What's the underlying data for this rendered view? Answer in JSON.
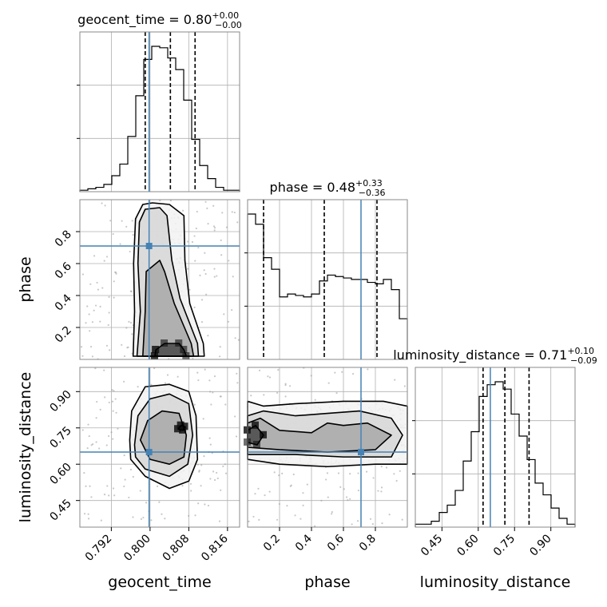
{
  "chart_data": {
    "type": "corner",
    "parameters": [
      {
        "name": "geocent_time",
        "range": [
          0.7855,
          0.8185
        ],
        "ticks": [
          {
            "v": 0.792,
            "label": "0.792"
          },
          {
            "v": 0.8,
            "label": "0.800"
          },
          {
            "v": 0.808,
            "label": "0.808"
          },
          {
            "v": 0.816,
            "label": "0.816"
          }
        ],
        "injection": 0.7998
      },
      {
        "name": "phase",
        "range": [
          0.0,
          1.0
        ],
        "ticks": [
          {
            "v": 0.2,
            "label": "0.2"
          },
          {
            "v": 0.4,
            "label": "0.4"
          },
          {
            "v": 0.6,
            "label": "0.6"
          },
          {
            "v": 0.8,
            "label": "0.8"
          }
        ],
        "injection": 0.71
      },
      {
        "name": "luminosity_distance",
        "range": [
          0.34,
          1.0
        ],
        "ticks": [
          {
            "v": 0.45,
            "label": "0.45"
          },
          {
            "v": 0.6,
            "label": "0.60"
          },
          {
            "v": 0.75,
            "label": "0.75"
          },
          {
            "v": 0.9,
            "label": "0.90"
          }
        ],
        "injection": 0.65
      }
    ],
    "titles": [
      {
        "prefix": "geocent_time = 0.80",
        "sup": "+0.00",
        "sub": "−0.00"
      },
      {
        "prefix": "phase = 0.48",
        "sup": "+0.33",
        "sub": "−0.36"
      },
      {
        "prefix": "luminosity_distance = 0.71",
        "sup": "+0.10",
        "sub": "−0.09"
      }
    ],
    "quantiles": [
      [
        0.799,
        0.8042,
        0.8093
      ],
      [
        0.1,
        0.48,
        0.81
      ],
      [
        0.62,
        0.71,
        0.81
      ]
    ],
    "histograms": [
      {
        "param": 0,
        "counts": [
          1,
          2,
          3,
          5,
          11,
          19,
          38,
          66,
          91,
          100,
          99,
          92,
          84,
          63,
          36,
          18,
          9,
          3,
          1,
          1
        ]
      },
      {
        "param": 1,
        "counts": [
          100,
          93,
          70,
          62,
          43,
          45,
          44,
          43,
          45,
          54,
          58,
          57,
          56,
          55,
          55,
          53,
          52,
          55,
          48,
          28
        ]
      },
      {
        "param": 2,
        "counts": [
          2,
          2,
          4,
          10,
          15,
          25,
          45,
          65,
          89,
          97,
          99,
          94,
          77,
          62,
          46,
          30,
          22,
          13,
          6,
          2
        ]
      }
    ],
    "joint": [
      {
        "x_param": 0,
        "y_param": 1,
        "contours": [
          [
            [
              0.7965,
              0.02
            ],
            [
              0.7968,
              0.3
            ],
            [
              0.7966,
              0.6
            ],
            [
              0.797,
              0.88
            ],
            [
              0.7985,
              0.97
            ],
            [
              0.8005,
              0.98
            ],
            [
              0.804,
              0.97
            ],
            [
              0.807,
              0.9
            ],
            [
              0.8072,
              0.62
            ],
            [
              0.8082,
              0.35
            ],
            [
              0.811,
              0.1
            ],
            [
              0.8112,
              0.02
            ]
          ],
          [
            [
              0.7973,
              0.02
            ],
            [
              0.798,
              0.3
            ],
            [
              0.7975,
              0.6
            ],
            [
              0.7978,
              0.86
            ],
            [
              0.799,
              0.94
            ],
            [
              0.802,
              0.95
            ],
            [
              0.8035,
              0.9
            ],
            [
              0.8045,
              0.62
            ],
            [
              0.8062,
              0.38
            ],
            [
              0.8098,
              0.1
            ],
            [
              0.81,
              0.02
            ]
          ],
          [
            [
              0.7985,
              0.02
            ],
            [
              0.799,
              0.3
            ],
            [
              0.7992,
              0.55
            ],
            [
              0.802,
              0.62
            ],
            [
              0.803,
              0.55
            ],
            [
              0.805,
              0.35
            ],
            [
              0.8085,
              0.1
            ],
            [
              0.809,
              0.02
            ]
          ],
          [
            [
              0.801,
              0.02
            ],
            [
              0.8012,
              0.06
            ],
            [
              0.803,
              0.1
            ],
            [
              0.806,
              0.1
            ],
            [
              0.807,
              0.06
            ],
            [
              0.8075,
              0.02
            ]
          ]
        ]
      },
      {
        "x_param": 0,
        "y_param": 2,
        "contours": [
          [
            [
              0.7958,
              0.7
            ],
            [
              0.7962,
              0.82
            ],
            [
              0.799,
              0.92
            ],
            [
              0.804,
              0.93
            ],
            [
              0.808,
              0.9
            ],
            [
              0.8095,
              0.8
            ],
            [
              0.8098,
              0.62
            ],
            [
              0.808,
              0.53
            ],
            [
              0.804,
              0.5
            ],
            [
              0.799,
              0.55
            ],
            [
              0.796,
              0.62
            ]
          ],
          [
            [
              0.7968,
              0.68
            ],
            [
              0.7975,
              0.8
            ],
            [
              0.8,
              0.87
            ],
            [
              0.804,
              0.89
            ],
            [
              0.808,
              0.85
            ],
            [
              0.8088,
              0.72
            ],
            [
              0.8078,
              0.6
            ],
            [
              0.804,
              0.55
            ],
            [
              0.799,
              0.58
            ],
            [
              0.797,
              0.63
            ]
          ],
          [
            [
              0.798,
              0.7
            ],
            [
              0.7995,
              0.78
            ],
            [
              0.8025,
              0.82
            ],
            [
              0.806,
              0.81
            ],
            [
              0.8075,
              0.72
            ],
            [
              0.807,
              0.63
            ],
            [
              0.804,
              0.6
            ],
            [
              0.8,
              0.62
            ]
          ],
          [
            [
              0.8058,
              0.745
            ],
            [
              0.8064,
              0.76
            ],
            [
              0.8072,
              0.755
            ],
            [
              0.8068,
              0.74
            ]
          ]
        ]
      },
      {
        "x_param": 1,
        "y_param": 2,
        "contours": [
          [
            [
              0.0,
              0.86
            ],
            [
              0.1,
              0.84
            ],
            [
              0.3,
              0.85
            ],
            [
              0.6,
              0.86
            ],
            [
              0.85,
              0.86
            ],
            [
              1.0,
              0.84
            ],
            [
              1.0,
              0.6
            ],
            [
              0.8,
              0.6
            ],
            [
              0.5,
              0.59
            ],
            [
              0.2,
              0.6
            ],
            [
              0.0,
              0.62
            ]
          ],
          [
            [
              0.0,
              0.8
            ],
            [
              0.1,
              0.82
            ],
            [
              0.3,
              0.8
            ],
            [
              0.5,
              0.81
            ],
            [
              0.7,
              0.82
            ],
            [
              0.9,
              0.79
            ],
            [
              0.97,
              0.72
            ],
            [
              0.9,
              0.63
            ],
            [
              0.6,
              0.63
            ],
            [
              0.3,
              0.64
            ],
            [
              0.0,
              0.64
            ]
          ],
          [
            [
              0.0,
              0.77
            ],
            [
              0.08,
              0.79
            ],
            [
              0.2,
              0.74
            ],
            [
              0.4,
              0.73
            ],
            [
              0.5,
              0.77
            ],
            [
              0.6,
              0.76
            ],
            [
              0.75,
              0.77
            ],
            [
              0.9,
              0.72
            ],
            [
              0.8,
              0.66
            ],
            [
              0.5,
              0.65
            ],
            [
              0.2,
              0.66
            ],
            [
              0.0,
              0.67
            ]
          ],
          [
            [
              0.0,
              0.74
            ],
            [
              0.05,
              0.76
            ],
            [
              0.1,
              0.72
            ],
            [
              0.06,
              0.68
            ],
            [
              0.0,
              0.69
            ]
          ]
        ]
      }
    ],
    "injection_color": "#4682b4"
  }
}
